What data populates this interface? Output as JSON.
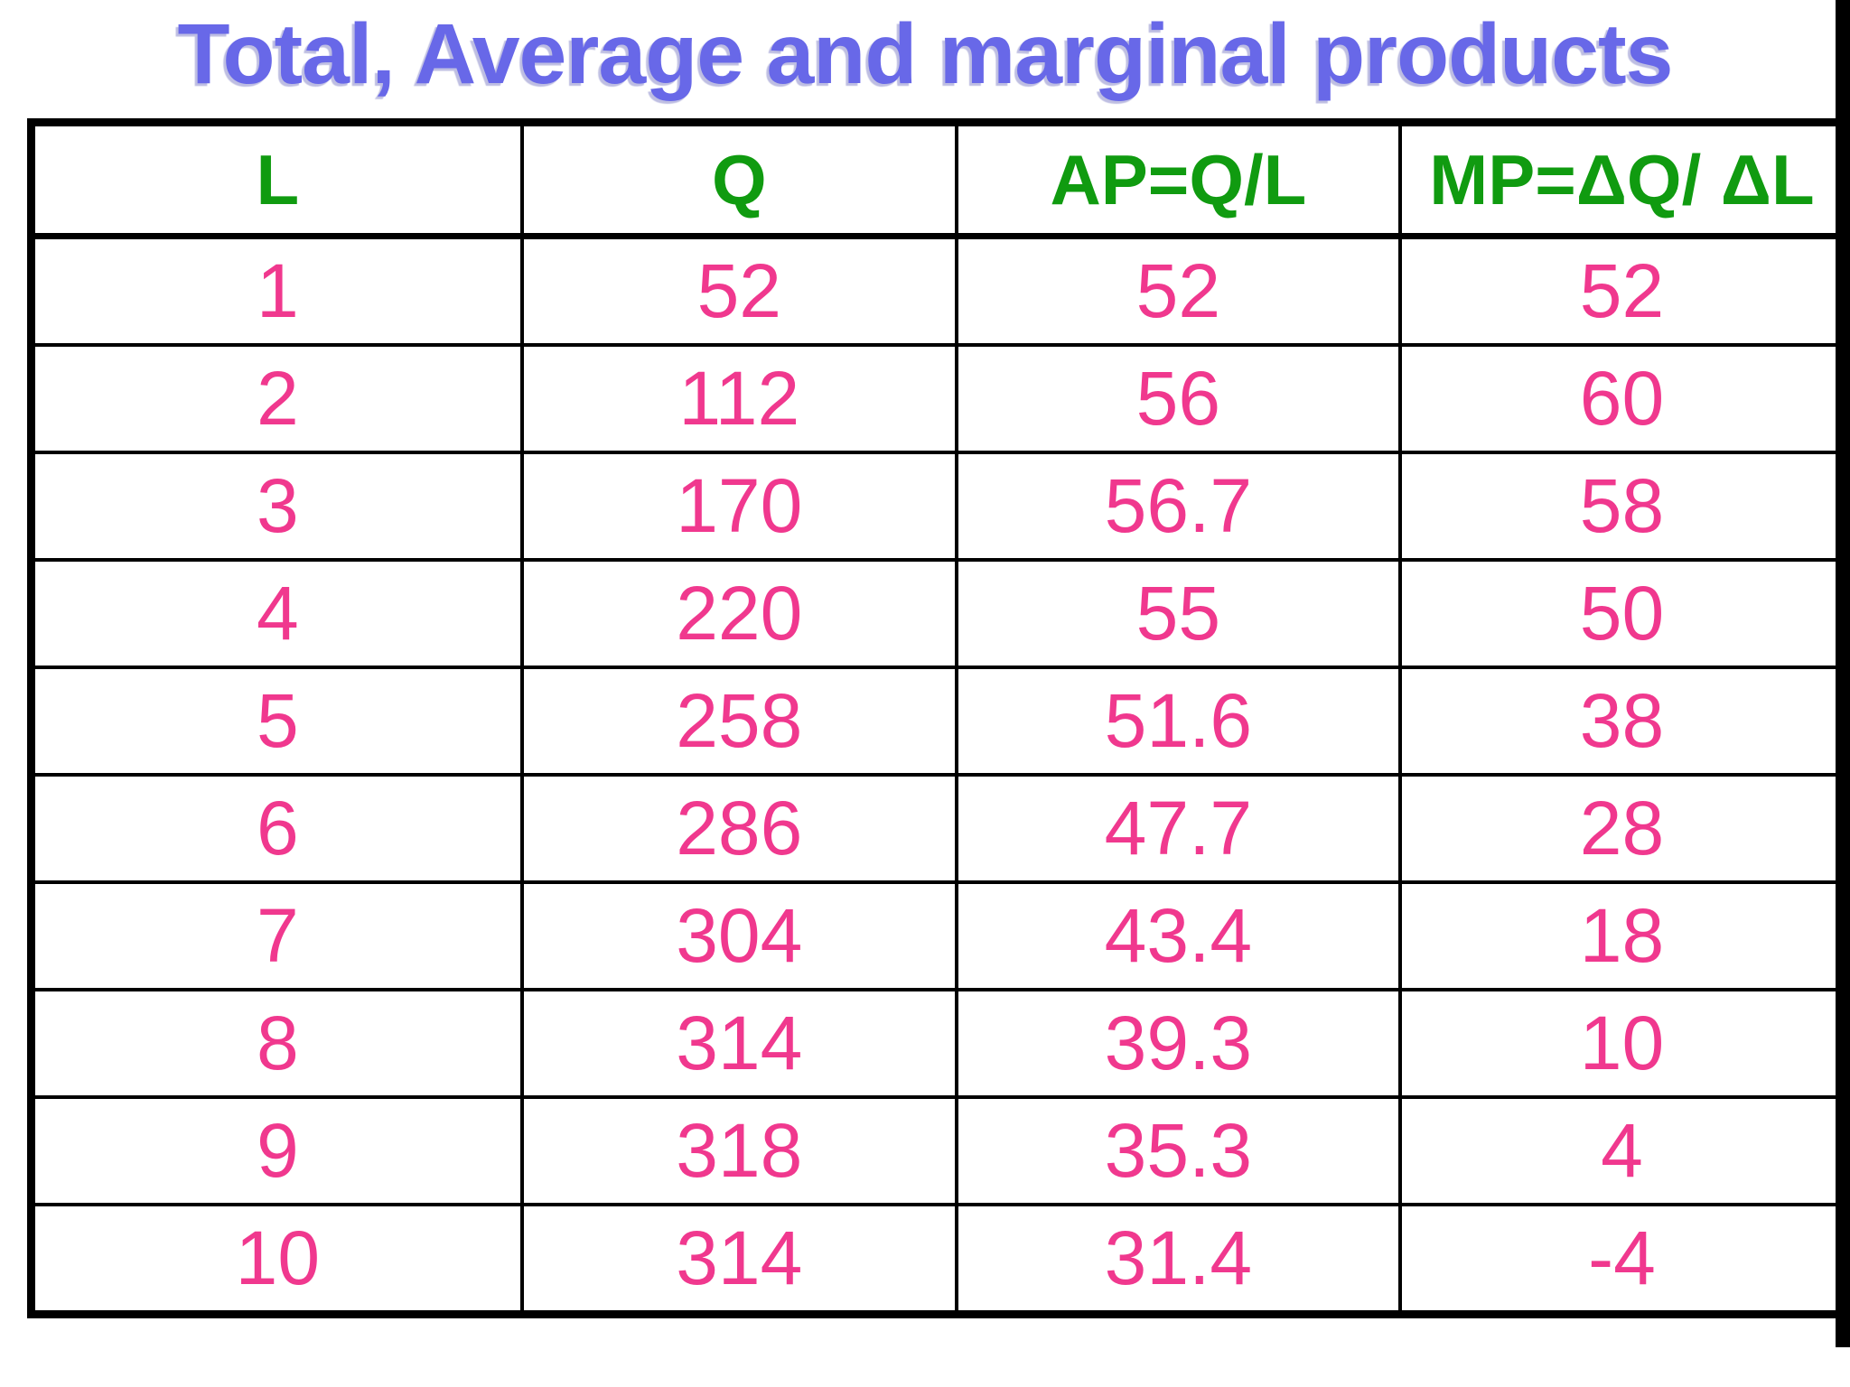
{
  "title": {
    "text": "Total, Average and marginal products",
    "color": "#6868E8"
  },
  "colors": {
    "header_green": "#109B10",
    "data_pink": "#F0388E",
    "border_black": "#000000",
    "background": "#FFFFFF"
  },
  "table": {
    "columns": [
      "L",
      "Q",
      "AP=Q/L",
      "MP=ΔQ/ ΔL"
    ],
    "rows": [
      [
        "1",
        "52",
        "52",
        "52"
      ],
      [
        "2",
        "112",
        "56",
        "60"
      ],
      [
        "3",
        "170",
        "56.7",
        "58"
      ],
      [
        "4",
        "220",
        "55",
        "50"
      ],
      [
        "5",
        "258",
        "51.6",
        "38"
      ],
      [
        "6",
        "286",
        "47.7",
        "28"
      ],
      [
        "7",
        "304",
        "43.4",
        "18"
      ],
      [
        "8",
        "314",
        "39.3",
        "10"
      ],
      [
        "9",
        "318",
        "35.3",
        "4"
      ],
      [
        "10",
        "314",
        "31.4",
        "-4"
      ]
    ]
  },
  "chart_data": {
    "type": "table",
    "title": "Total, Average and marginal products",
    "columns": [
      "L",
      "Q",
      "AP=Q/L",
      "MP=ΔQ/ ΔL"
    ],
    "rows": [
      [
        1,
        52,
        52,
        52
      ],
      [
        2,
        112,
        56,
        60
      ],
      [
        3,
        170,
        56.7,
        58
      ],
      [
        4,
        220,
        55,
        50
      ],
      [
        5,
        258,
        51.6,
        38
      ],
      [
        6,
        286,
        47.7,
        28
      ],
      [
        7,
        304,
        43.4,
        18
      ],
      [
        8,
        314,
        39.3,
        10
      ],
      [
        9,
        318,
        35.3,
        4
      ],
      [
        10,
        314,
        31.4,
        -4
      ]
    ],
    "legend_position": "none",
    "grid": true
  }
}
